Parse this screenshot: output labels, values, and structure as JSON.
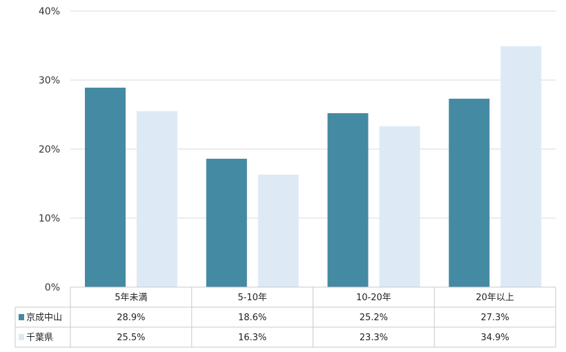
{
  "chart_data": {
    "type": "bar",
    "title": "",
    "xlabel": "",
    "ylabel": "",
    "categories": [
      "5年未満",
      "5-10年",
      "10-20年",
      "20年以上"
    ],
    "series": [
      {
        "name": "京成中山",
        "color": "#458aa3",
        "values": [
          28.9,
          18.6,
          25.2,
          27.3
        ],
        "labels": [
          "28.9%",
          "18.6%",
          "25.2%",
          "27.3%"
        ]
      },
      {
        "name": "千葉県",
        "color": "#ddeaf6",
        "values": [
          25.5,
          16.3,
          23.3,
          34.9
        ],
        "labels": [
          "25.5%",
          "16.3%",
          "23.3%",
          "34.9%"
        ]
      }
    ],
    "ylim": [
      0,
      40
    ],
    "yticks": [
      0,
      10,
      20,
      30,
      40
    ],
    "ytick_labels": [
      "0%",
      "10%",
      "20%",
      "30%",
      "40%"
    ],
    "grid": true,
    "legend": "data-table"
  }
}
